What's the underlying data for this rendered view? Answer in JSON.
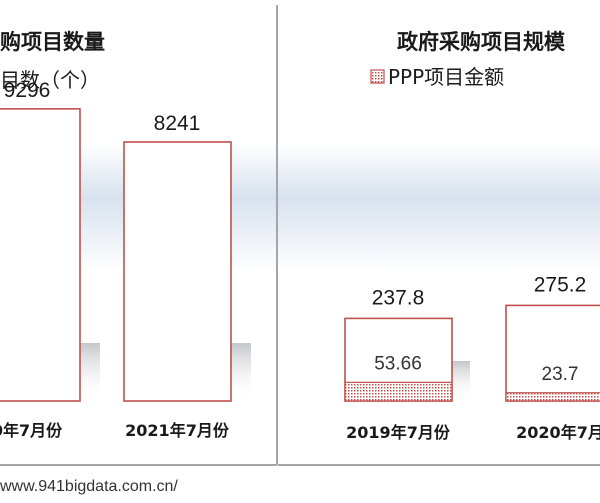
{
  "chart_data": [
    {
      "type": "bar",
      "title": "购项目数量",
      "legend": "目数（个）",
      "categories": [
        "0年7月份",
        "2021年7月份"
      ],
      "values": [
        9296,
        8241
      ],
      "value_labels": [
        "9296",
        "8241"
      ],
      "ylim": [
        0,
        10500
      ],
      "bar_color": "#c0504d"
    },
    {
      "type": "bar",
      "title": "政府采购项目规模",
      "legend": "PPP项目金额",
      "categories": [
        "2019年7月份",
        "2020年7月"
      ],
      "totals": [
        237.8,
        275.2
      ],
      "total_labels": [
        "237.8",
        "275.2"
      ],
      "inner_values": [
        53.66,
        23.7
      ],
      "inner_labels": [
        "53.66",
        "23.7"
      ],
      "ylim": [
        0,
        950
      ],
      "bar_color": "#c0504d"
    }
  ],
  "source": "www.941bigdata.com.cn/"
}
